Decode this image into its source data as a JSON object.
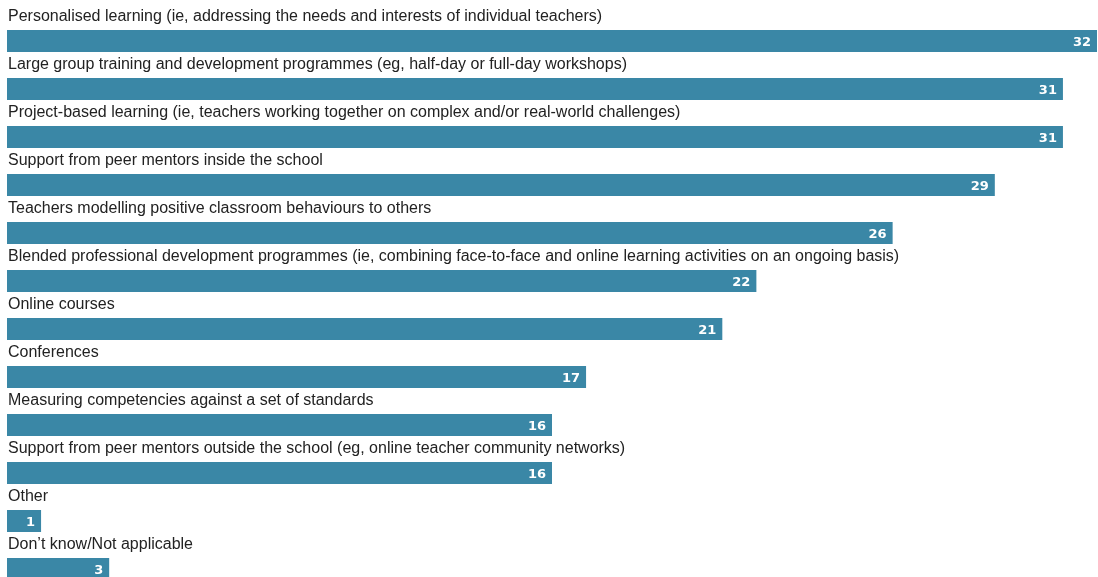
{
  "chart_data": {
    "type": "bar",
    "orientation": "horizontal",
    "categories": [
      "Personalised learning (ie, addressing the needs and interests of individual teachers)",
      "Large group training and development programmes (eg, half-day or full-day workshops)",
      "Project-based learning (ie, teachers working together on complex and/or real-world challenges)",
      "Support from peer mentors inside the school",
      "Teachers modelling positive classroom behaviours to others",
      "Blended professional development programmes (ie, combining face-to-face and online learning activities on an ongoing basis)",
      "Online courses",
      "Conferences",
      "Measuring competencies against a set of standards",
      "Support from peer mentors outside the school (eg, online teacher community networks)",
      "Other",
      "Don’t know/Not applicable"
    ],
    "values": [
      32,
      31,
      31,
      29,
      26,
      22,
      21,
      17,
      16,
      16,
      1,
      3
    ],
    "color": "#3a87a6",
    "data_labels": true
  }
}
